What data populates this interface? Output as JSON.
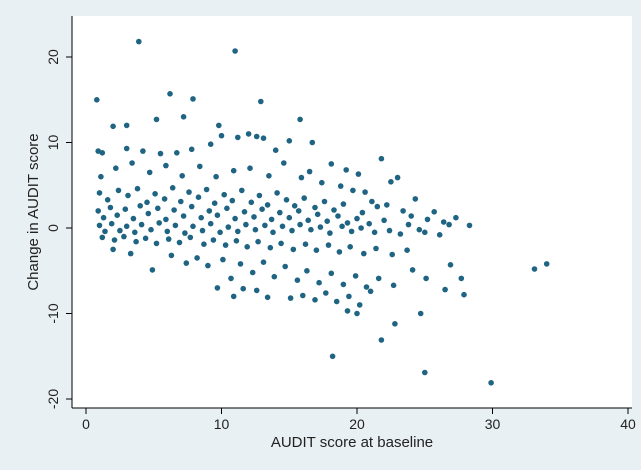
{
  "colors": {
    "outer_background": "#e9f0f3",
    "plot_background": "#ffffff",
    "marker": "#1f6482",
    "axis": "#000000"
  },
  "chart_data": {
    "type": "scatter",
    "title": "",
    "xlabel": "AUDIT score at baseline",
    "ylabel": "Change in AUDIT score",
    "xlim": [
      0,
      40
    ],
    "ylim": [
      -20,
      20
    ],
    "x_ticks": [
      0,
      10,
      20,
      30,
      40
    ],
    "y_ticks": [
      -20,
      -10,
      0,
      10,
      20
    ],
    "x_tick_labels": [
      "0",
      "10",
      "20",
      "30",
      "40"
    ],
    "y_tick_labels": [
      "-20",
      "-10",
      "0",
      "10",
      "20"
    ],
    "grid": false,
    "legend": "none",
    "series": [
      {
        "points": [
          [
            3.9,
            21.8
          ],
          [
            11.0,
            20.7
          ],
          [
            0.8,
            15.0
          ],
          [
            6.2,
            15.7
          ],
          [
            7.9,
            15.1
          ],
          [
            12.9,
            14.8
          ],
          [
            2.0,
            11.9
          ],
          [
            3.0,
            12.0
          ],
          [
            5.2,
            12.7
          ],
          [
            7.2,
            13.0
          ],
          [
            9.8,
            12.0
          ],
          [
            12.0,
            11.0
          ],
          [
            12.6,
            10.7
          ],
          [
            13.1,
            10.5
          ],
          [
            11.2,
            10.6
          ],
          [
            15.8,
            12.7
          ],
          [
            15.0,
            10.2
          ],
          [
            16.7,
            10.0
          ],
          [
            0.9,
            9.0
          ],
          [
            1.2,
            8.8
          ],
          [
            3.0,
            9.3
          ],
          [
            4.2,
            9.0
          ],
          [
            5.5,
            8.7
          ],
          [
            6.7,
            8.8
          ],
          [
            7.8,
            9.2
          ],
          [
            9.2,
            9.8
          ],
          [
            10.0,
            10.8
          ],
          [
            14.0,
            9.1
          ],
          [
            18.1,
            7.5
          ],
          [
            19.2,
            6.8
          ],
          [
            20.1,
            6.3
          ],
          [
            21.8,
            8.1
          ],
          [
            22.5,
            5.4
          ],
          [
            23.0,
            5.9
          ],
          [
            24.3,
            3.4
          ],
          [
            25.2,
            1.0
          ],
          [
            25.7,
            1.9
          ],
          [
            26.4,
            0.7
          ],
          [
            27.3,
            1.2
          ],
          [
            28.3,
            0.3
          ],
          [
            1.1,
            6.0
          ],
          [
            2.2,
            7.0
          ],
          [
            3.4,
            7.6
          ],
          [
            4.7,
            6.5
          ],
          [
            5.9,
            7.3
          ],
          [
            7.1,
            6.1
          ],
          [
            8.4,
            7.2
          ],
          [
            9.6,
            6.0
          ],
          [
            10.9,
            6.7
          ],
          [
            12.1,
            7.0
          ],
          [
            13.5,
            6.1
          ],
          [
            14.6,
            7.6
          ],
          [
            15.9,
            5.9
          ],
          [
            16.5,
            6.6
          ],
          [
            17.4,
            5.3
          ],
          [
            18.8,
            4.9
          ],
          [
            19.7,
            4.4
          ],
          [
            20.6,
            4.2
          ],
          [
            21.1,
            3.1
          ],
          [
            22.2,
            2.7
          ],
          [
            23.4,
            2.0
          ],
          [
            24.0,
            1.4
          ],
          [
            26.8,
            0.4
          ],
          [
            1.0,
            4.1
          ],
          [
            1.6,
            3.3
          ],
          [
            2.4,
            4.4
          ],
          [
            3.1,
            3.8
          ],
          [
            3.8,
            4.6
          ],
          [
            4.5,
            3.0
          ],
          [
            5.1,
            4.0
          ],
          [
            5.8,
            3.4
          ],
          [
            6.4,
            4.7
          ],
          [
            7.0,
            3.1
          ],
          [
            7.6,
            4.2
          ],
          [
            8.3,
            3.6
          ],
          [
            8.9,
            4.5
          ],
          [
            9.5,
            2.9
          ],
          [
            10.2,
            3.9
          ],
          [
            10.8,
            3.2
          ],
          [
            11.5,
            4.4
          ],
          [
            12.2,
            3.0
          ],
          [
            12.8,
            3.8
          ],
          [
            13.4,
            2.7
          ],
          [
            14.1,
            4.1
          ],
          [
            14.8,
            3.3
          ],
          [
            15.4,
            2.6
          ],
          [
            16.1,
            3.5
          ],
          [
            16.9,
            2.4
          ],
          [
            17.6,
            3.1
          ],
          [
            18.3,
            2.1
          ],
          [
            19.0,
            2.8
          ],
          [
            20.4,
            1.8
          ],
          [
            21.5,
            2.5
          ],
          [
            0.9,
            2.0
          ],
          [
            1.3,
            1.2
          ],
          [
            1.8,
            2.4
          ],
          [
            2.3,
            1.5
          ],
          [
            2.9,
            2.2
          ],
          [
            3.5,
            1.1
          ],
          [
            4.0,
            2.6
          ],
          [
            4.6,
            1.7
          ],
          [
            5.3,
            2.3
          ],
          [
            5.9,
            1.0
          ],
          [
            6.5,
            2.1
          ],
          [
            7.2,
            1.4
          ],
          [
            7.8,
            2.5
          ],
          [
            8.5,
            1.2
          ],
          [
            9.1,
            2.0
          ],
          [
            9.7,
            1.5
          ],
          [
            10.4,
            2.3
          ],
          [
            11.0,
            1.1
          ],
          [
            11.7,
            1.9
          ],
          [
            12.4,
            1.3
          ],
          [
            13.0,
            2.2
          ],
          [
            13.7,
            1.0
          ],
          [
            14.3,
            1.8
          ],
          [
            15.0,
            1.2
          ],
          [
            15.7,
            2.0
          ],
          [
            16.4,
            0.9
          ],
          [
            17.1,
            1.6
          ],
          [
            17.8,
            0.8
          ],
          [
            18.6,
            1.4
          ],
          [
            19.3,
            0.6
          ],
          [
            20.0,
            1.1
          ],
          [
            20.9,
            0.5
          ],
          [
            22.0,
            0.9
          ],
          [
            23.8,
            0.4
          ],
          [
            24.6,
            -0.2
          ],
          [
            1.0,
            0.3
          ],
          [
            1.4,
            -0.4
          ],
          [
            1.9,
            0.5
          ],
          [
            2.5,
            -0.3
          ],
          [
            3.0,
            0.2
          ],
          [
            3.6,
            -0.5
          ],
          [
            4.1,
            0.4
          ],
          [
            4.8,
            -0.2
          ],
          [
            5.4,
            0.6
          ],
          [
            6.0,
            -0.4
          ],
          [
            6.6,
            0.3
          ],
          [
            7.3,
            -0.6
          ],
          [
            7.9,
            0.2
          ],
          [
            8.6,
            -0.3
          ],
          [
            9.2,
            0.5
          ],
          [
            9.9,
            -0.5
          ],
          [
            10.5,
            0.1
          ],
          [
            11.2,
            -0.4
          ],
          [
            11.8,
            0.4
          ],
          [
            12.5,
            -0.2
          ],
          [
            13.2,
            0.3
          ],
          [
            13.8,
            -0.5
          ],
          [
            14.5,
            0.2
          ],
          [
            15.2,
            -0.3
          ],
          [
            15.8,
            0.4
          ],
          [
            16.6,
            -0.2
          ],
          [
            17.3,
            0.1
          ],
          [
            18.0,
            -0.6
          ],
          [
            18.9,
            0.2
          ],
          [
            19.6,
            -0.4
          ],
          [
            20.3,
            0.0
          ],
          [
            21.3,
            -0.5
          ],
          [
            22.4,
            -0.3
          ],
          [
            23.2,
            -0.7
          ],
          [
            25.0,
            -0.5
          ],
          [
            26.1,
            -0.8
          ],
          [
            1.2,
            -1.1
          ],
          [
            2.1,
            -1.4
          ],
          [
            2.8,
            -1.0
          ],
          [
            3.7,
            -1.6
          ],
          [
            4.4,
            -1.2
          ],
          [
            5.2,
            -1.8
          ],
          [
            6.1,
            -1.3
          ],
          [
            6.9,
            -1.7
          ],
          [
            7.7,
            -1.1
          ],
          [
            8.7,
            -1.9
          ],
          [
            9.4,
            -1.4
          ],
          [
            10.3,
            -2.0
          ],
          [
            11.1,
            -1.5
          ],
          [
            11.9,
            -2.2
          ],
          [
            12.7,
            -1.6
          ],
          [
            13.6,
            -2.3
          ],
          [
            14.4,
            -1.8
          ],
          [
            15.3,
            -2.5
          ],
          [
            16.2,
            -1.9
          ],
          [
            17.0,
            -2.6
          ],
          [
            17.9,
            -2.0
          ],
          [
            18.7,
            -2.8
          ],
          [
            19.5,
            -2.2
          ],
          [
            20.5,
            -3.0
          ],
          [
            21.4,
            -2.4
          ],
          [
            22.6,
            -3.1
          ],
          [
            23.7,
            -2.6
          ],
          [
            2.0,
            -2.5
          ],
          [
            3.3,
            -3.0
          ],
          [
            4.9,
            -4.9
          ],
          [
            6.3,
            -3.2
          ],
          [
            7.4,
            -4.1
          ],
          [
            8.2,
            -3.5
          ],
          [
            9.0,
            -4.4
          ],
          [
            10.1,
            -3.7
          ],
          [
            10.7,
            -5.9
          ],
          [
            11.4,
            -4.2
          ],
          [
            12.3,
            -5.2
          ],
          [
            13.1,
            -4.0
          ],
          [
            13.9,
            -5.7
          ],
          [
            14.7,
            -4.5
          ],
          [
            15.6,
            -6.1
          ],
          [
            16.3,
            -5.0
          ],
          [
            17.2,
            -6.4
          ],
          [
            18.1,
            -5.3
          ],
          [
            19.0,
            -6.6
          ],
          [
            19.9,
            -5.6
          ],
          [
            20.7,
            -6.9
          ],
          [
            21.6,
            -5.9
          ],
          [
            22.7,
            -6.7
          ],
          [
            24.1,
            -4.9
          ],
          [
            25.1,
            -5.9
          ],
          [
            26.9,
            -4.3
          ],
          [
            27.7,
            -5.9
          ],
          [
            33.1,
            -4.8
          ],
          [
            34.0,
            -4.2
          ],
          [
            9.7,
            -7.0
          ],
          [
            10.9,
            -8.0
          ],
          [
            11.6,
            -7.1
          ],
          [
            12.6,
            -7.3
          ],
          [
            13.4,
            -8.1
          ],
          [
            15.1,
            -8.2
          ],
          [
            16.0,
            -7.9
          ],
          [
            16.9,
            -8.4
          ],
          [
            17.7,
            -7.6
          ],
          [
            18.5,
            -8.6
          ],
          [
            19.4,
            -8.0
          ],
          [
            20.2,
            -9.0
          ],
          [
            21.0,
            -7.4
          ],
          [
            26.5,
            -7.2
          ],
          [
            27.9,
            -7.8
          ],
          [
            19.3,
            -9.7
          ],
          [
            20.0,
            -10.0
          ],
          [
            22.8,
            -11.2
          ],
          [
            24.7,
            -10.0
          ],
          [
            21.8,
            -13.1
          ],
          [
            18.2,
            -15.0
          ],
          [
            25.0,
            -16.9
          ],
          [
            29.9,
            -18.1
          ]
        ]
      }
    ]
  }
}
